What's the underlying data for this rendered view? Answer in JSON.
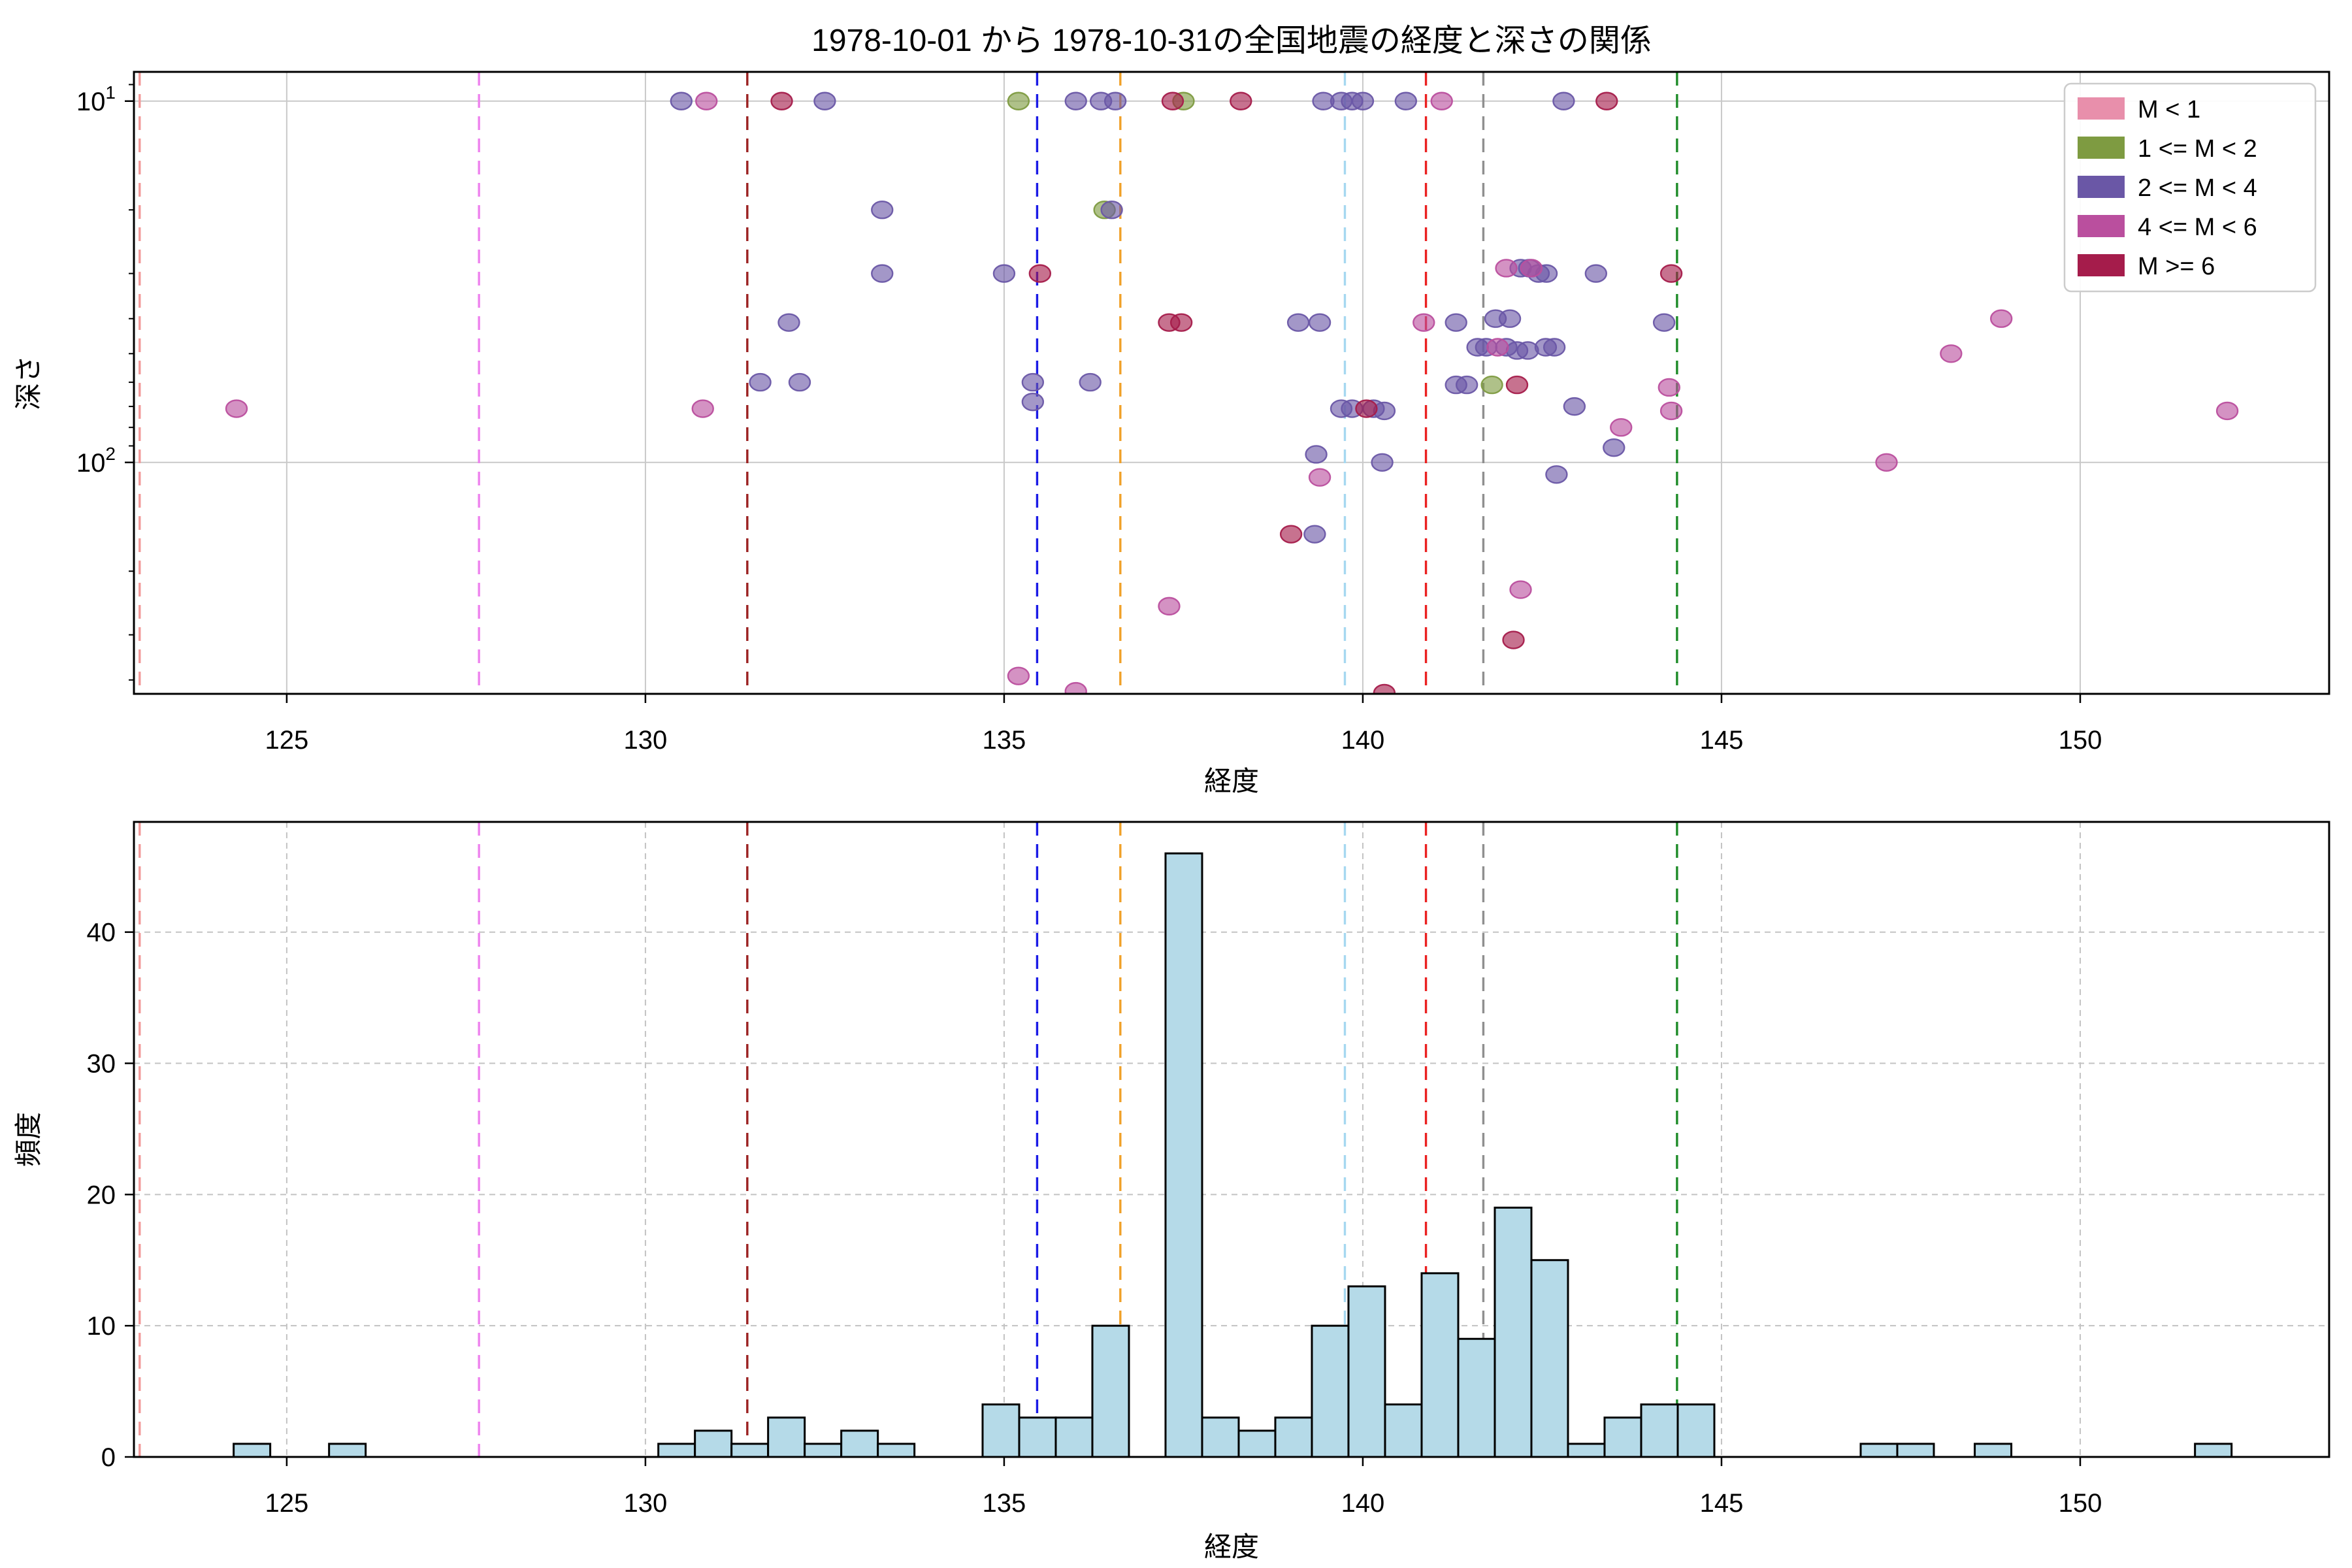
{
  "figure_title": "1978-10-01 から 1978-10-31の全国地震の経度と深さの関係",
  "chart_data": [
    {
      "type": "scatter",
      "title": "1978-10-01 から 1978-10-31の全国地震の経度と深さの関係",
      "xlabel": "経度",
      "ylabel": "深さ",
      "xlim": [
        122.87,
        153.47
      ],
      "ylim_depth_log_inverted": [
        8.3,
        437
      ],
      "xticks": [
        125,
        130,
        135,
        140,
        145,
        150
      ],
      "xtick_labels": [
        "125",
        "130",
        "135",
        "140",
        "145",
        "150"
      ],
      "ytick_major": [
        10,
        100
      ],
      "ytick_labels": [
        {
          "base": "10",
          "exp": "1"
        },
        {
          "base": "10",
          "exp": "2"
        }
      ],
      "ytick_minor": [
        9,
        20,
        30,
        40,
        50,
        60,
        70,
        80,
        90,
        200,
        300,
        400
      ],
      "grid": "solid-major",
      "legend_position": "upper-right",
      "series": [
        {
          "name": "M < 1",
          "color": "#e88fab",
          "points": []
        },
        {
          "name": "1 <= M < 2",
          "color": "#7e9b41",
          "points": [
            [
              135.2,
              10
            ],
            [
              137.5,
              10
            ],
            [
              136.4,
              20
            ],
            [
              141.8,
              61
            ]
          ]
        },
        {
          "name": "2 <= M < 4",
          "color": "#6a57a6",
          "points": [
            [
              130.5,
              10
            ],
            [
              132.5,
              10
            ],
            [
              136.0,
              10
            ],
            [
              136.35,
              10
            ],
            [
              136.55,
              10
            ],
            [
              139.45,
              10
            ],
            [
              139.7,
              10
            ],
            [
              139.85,
              10
            ],
            [
              140.0,
              10
            ],
            [
              140.6,
              10
            ],
            [
              142.8,
              10
            ],
            [
              133.3,
              20
            ],
            [
              136.5,
              20
            ],
            [
              142.2,
              29
            ],
            [
              142.32,
              29
            ],
            [
              142.45,
              30
            ],
            [
              142.56,
              30
            ],
            [
              143.25,
              30
            ],
            [
              133.3,
              30
            ],
            [
              135.0,
              30
            ],
            [
              132.0,
              41
            ],
            [
              139.1,
              41
            ],
            [
              139.4,
              41
            ],
            [
              141.3,
              41
            ],
            [
              141.85,
              40
            ],
            [
              142.05,
              40
            ],
            [
              144.2,
              41
            ],
            [
              141.6,
              48
            ],
            [
              141.72,
              48
            ],
            [
              142.0,
              48
            ],
            [
              142.15,
              49
            ],
            [
              142.3,
              49
            ],
            [
              142.55,
              48
            ],
            [
              142.67,
              48
            ],
            [
              131.6,
              60
            ],
            [
              132.15,
              60
            ],
            [
              135.4,
              60
            ],
            [
              136.2,
              60
            ],
            [
              141.3,
              61
            ],
            [
              141.45,
              61
            ],
            [
              135.4,
              68
            ],
            [
              139.7,
              71
            ],
            [
              139.85,
              71
            ],
            [
              140.15,
              71
            ],
            [
              140.3,
              72
            ],
            [
              142.95,
              70
            ],
            [
              143.5,
              91
            ],
            [
              139.35,
              95
            ],
            [
              140.27,
              100
            ],
            [
              142.7,
              108
            ],
            [
              139.33,
              158
            ]
          ]
        },
        {
          "name": "4 <= M < 6",
          "color": "#ba4f9e",
          "points": [
            [
              130.85,
              10
            ],
            [
              141.1,
              10
            ],
            [
              142.0,
              29
            ],
            [
              142.35,
              29
            ],
            [
              140.85,
              41
            ],
            [
              148.9,
              40
            ],
            [
              141.88,
              48
            ],
            [
              148.2,
              50
            ],
            [
              144.27,
              62
            ],
            [
              124.3,
              71
            ],
            [
              130.8,
              71
            ],
            [
              144.3,
              72
            ],
            [
              152.05,
              72
            ],
            [
              143.6,
              80
            ],
            [
              147.3,
              100
            ],
            [
              139.4,
              110
            ],
            [
              142.2,
              225
            ],
            [
              137.3,
              250
            ],
            [
              135.2,
              390
            ],
            [
              136.0,
              430
            ]
          ]
        },
        {
          "name": "M >= 6",
          "color": "#a51c4b",
          "points": [
            [
              131.9,
              10
            ],
            [
              137.35,
              10
            ],
            [
              138.3,
              10
            ],
            [
              143.4,
              10
            ],
            [
              135.5,
              30
            ],
            [
              144.3,
              30
            ],
            [
              137.3,
              41
            ],
            [
              137.47,
              41
            ],
            [
              142.15,
              61
            ],
            [
              140.05,
              71
            ],
            [
              139.0,
              158
            ],
            [
              142.1,
              310
            ],
            [
              140.3,
              435
            ]
          ]
        }
      ],
      "vlines": [
        {
          "x": 122.95,
          "color": "#f29a9a"
        },
        {
          "x": 127.68,
          "color": "#ee82ee"
        },
        {
          "x": 131.42,
          "color": "#9b2222"
        },
        {
          "x": 135.46,
          "color": "#1a1ae6"
        },
        {
          "x": 136.62,
          "color": "#f0a028"
        },
        {
          "x": 139.75,
          "color": "#a6d8f0"
        },
        {
          "x": 140.88,
          "color": "#ea2020"
        },
        {
          "x": 141.68,
          "color": "#8f8f8f"
        },
        {
          "x": 144.38,
          "color": "#1e8c28"
        }
      ]
    },
    {
      "type": "bar",
      "xlabel": "経度",
      "ylabel": "頻度",
      "xlim": [
        122.87,
        153.47
      ],
      "ylim": [
        0,
        48.4
      ],
      "xticks": [
        125,
        130,
        135,
        140,
        145,
        150
      ],
      "xtick_labels": [
        "125",
        "130",
        "135",
        "140",
        "145",
        "150"
      ],
      "yticks": [
        0,
        10,
        20,
        30,
        40
      ],
      "ytick_labels": [
        "0",
        "10",
        "20",
        "30",
        "40"
      ],
      "grid": "dashed",
      "bar_color": "#b5dae8",
      "bar_edge_color": "#000000",
      "bin_width": 0.51,
      "bars": [
        {
          "x": 124.26,
          "count": 1
        },
        {
          "x": 125.59,
          "count": 1
        },
        {
          "x": 130.18,
          "count": 1
        },
        {
          "x": 130.69,
          "count": 2
        },
        {
          "x": 131.2,
          "count": 1
        },
        {
          "x": 131.71,
          "count": 3
        },
        {
          "x": 132.22,
          "count": 1
        },
        {
          "x": 132.73,
          "count": 2
        },
        {
          "x": 133.24,
          "count": 1
        },
        {
          "x": 134.7,
          "count": 4
        },
        {
          "x": 135.21,
          "count": 3
        },
        {
          "x": 135.72,
          "count": 3
        },
        {
          "x": 136.23,
          "count": 10
        },
        {
          "x": 137.25,
          "count": 46
        },
        {
          "x": 137.76,
          "count": 3
        },
        {
          "x": 138.27,
          "count": 2
        },
        {
          "x": 138.78,
          "count": 3
        },
        {
          "x": 139.29,
          "count": 10
        },
        {
          "x": 139.8,
          "count": 13
        },
        {
          "x": 140.31,
          "count": 4
        },
        {
          "x": 140.82,
          "count": 14
        },
        {
          "x": 141.33,
          "count": 9
        },
        {
          "x": 141.84,
          "count": 19
        },
        {
          "x": 142.35,
          "count": 15
        },
        {
          "x": 142.86,
          "count": 1
        },
        {
          "x": 143.37,
          "count": 3
        },
        {
          "x": 143.88,
          "count": 4
        },
        {
          "x": 144.39,
          "count": 4
        },
        {
          "x": 146.94,
          "count": 1
        },
        {
          "x": 147.45,
          "count": 1
        },
        {
          "x": 148.53,
          "count": 1
        },
        {
          "x": 151.6,
          "count": 1
        }
      ],
      "vlines": [
        {
          "x": 122.95,
          "color": "#f29a9a"
        },
        {
          "x": 127.68,
          "color": "#ee82ee"
        },
        {
          "x": 131.42,
          "color": "#9b2222"
        },
        {
          "x": 135.46,
          "color": "#1a1ae6"
        },
        {
          "x": 136.62,
          "color": "#f0a028"
        },
        {
          "x": 139.75,
          "color": "#a6d8f0"
        },
        {
          "x": 140.88,
          "color": "#ea2020"
        },
        {
          "x": 141.68,
          "color": "#8f8f8f"
        },
        {
          "x": 144.38,
          "color": "#1e8c28"
        }
      ]
    }
  ],
  "legend": {
    "entries": [
      {
        "label": "M < 1",
        "color": "#e88fab"
      },
      {
        "label": "1 <= M < 2",
        "color": "#7e9b41"
      },
      {
        "label": "2 <= M < 4",
        "color": "#6a57a6"
      },
      {
        "label": "4 <= M < 6",
        "color": "#ba4f9e"
      },
      {
        "label": "M >= 6",
        "color": "#a51c4b"
      }
    ]
  }
}
